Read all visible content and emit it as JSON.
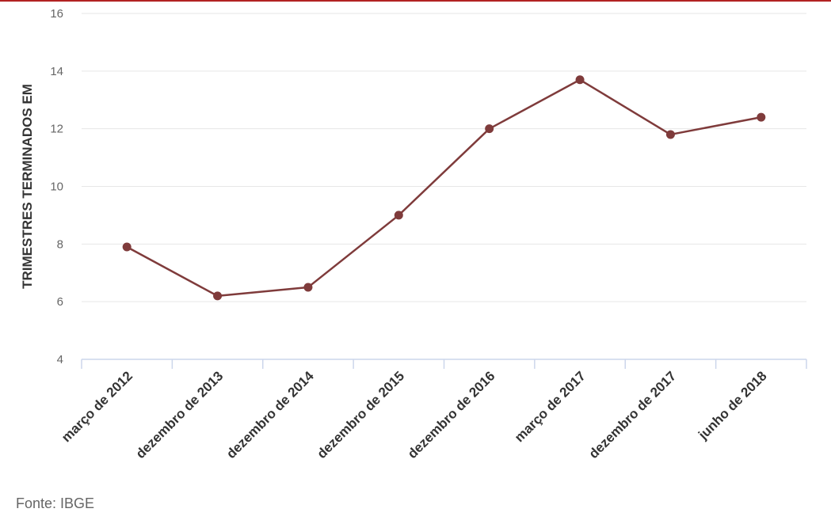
{
  "colors": {
    "series": "#7f3b3b",
    "grid": "#e6e6e6",
    "axis": "#ccd6eb",
    "top_rule": "#b22222"
  },
  "source": "Fonte: IBGE",
  "chart_data": {
    "type": "line",
    "title": "",
    "xlabel": "",
    "ylabel": "TRIMESTRES TERMINADOS EM",
    "categories": [
      "março de 2012",
      "dezembro de 2013",
      "dezembro de 2014",
      "dezembro de 2015",
      "dezembro de 2016",
      "março de 2017",
      "dezembro de 2017",
      "junho de 2018"
    ],
    "series": [
      {
        "values": [
          7.9,
          6.2,
          6.5,
          9.0,
          12.0,
          13.7,
          11.8,
          12.4
        ]
      }
    ],
    "ylim": [
      4,
      16
    ],
    "yticks": [
      4,
      6,
      8,
      10,
      12,
      14,
      16
    ],
    "grid": true,
    "legend": "none"
  }
}
